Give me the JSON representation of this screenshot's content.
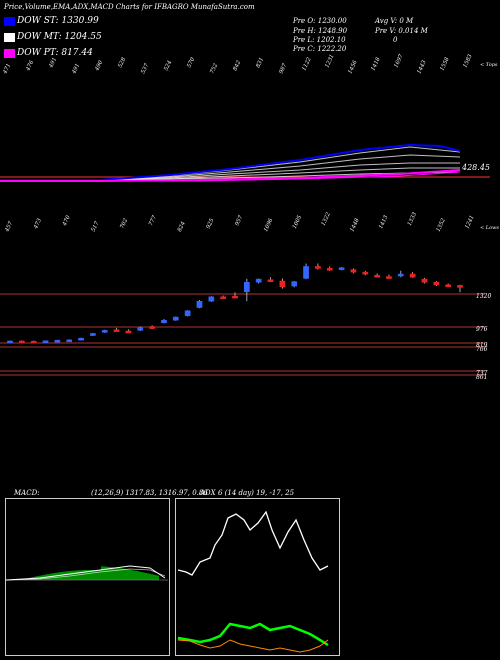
{
  "title": "Price,Volume,EMA,ADX,MACD Charts for IFBAGRO MunafaSutra.com",
  "legend": [
    {
      "label": "DOW ST: 1330.99",
      "color": "#0000ff"
    },
    {
      "label": "DOW MT: 1204.55",
      "color": "#ffffff"
    },
    {
      "label": "DOW PT: 817.44",
      "color": "#ff00ff"
    }
  ],
  "info": {
    "col1": [
      "Pre O: 1230.00",
      "Pre H: 1248.90",
      "Pre L: 1202.10",
      "Pre C: 1222.20"
    ],
    "col2": [
      "Avg V: 0 M",
      "Pre V: 0.014 M",
      "0"
    ]
  },
  "top_panel": {
    "axis_tag": "< Tops",
    "top_labels": [
      "471",
      "476",
      "491",
      "491",
      "490",
      "528",
      "537",
      "524",
      "570",
      "752",
      "842",
      "831",
      "987",
      "1122",
      "1231",
      "1456",
      "1418",
      "1697",
      "1443",
      "1558",
      "1583"
    ],
    "level_label": "428.45"
  },
  "main_panel": {
    "axis_tag": "< Lows",
    "low_labels": [
      "457",
      "473",
      "470",
      "517",
      "702",
      "777",
      "824",
      "925",
      "957",
      "1096",
      "1005",
      "1322",
      "1448",
      "1413",
      "1333",
      "1352",
      "1241"
    ],
    "levels": [
      "1320",
      "976",
      "819",
      "766",
      "737",
      "861"
    ]
  },
  "macd": {
    "label": "MACD:",
    "values": "(12,26,9) 1317.83, 1316.97, 0.86",
    "adx_label": "ADX",
    "adx_values": "6          (14 day) 19, -17, 25"
  },
  "chart_data": {
    "type": "candlestick",
    "title": "Price,Volume,EMA,ADX,MACD Charts for IFBAGRO MunafaSutra.com",
    "candles": [
      {
        "o": 470,
        "h": 480,
        "l": 460,
        "c": 472
      },
      {
        "o": 472,
        "h": 482,
        "l": 465,
        "c": 468
      },
      {
        "o": 468,
        "h": 478,
        "l": 460,
        "c": 465
      },
      {
        "o": 470,
        "h": 480,
        "l": 462,
        "c": 476
      },
      {
        "o": 476,
        "h": 490,
        "l": 470,
        "c": 485
      },
      {
        "o": 485,
        "h": 498,
        "l": 478,
        "c": 490
      },
      {
        "o": 500,
        "h": 525,
        "l": 495,
        "c": 515
      },
      {
        "o": 560,
        "h": 600,
        "l": 550,
        "c": 590
      },
      {
        "o": 610,
        "h": 650,
        "l": 600,
        "c": 640
      },
      {
        "o": 650,
        "h": 680,
        "l": 620,
        "c": 630
      },
      {
        "o": 630,
        "h": 655,
        "l": 615,
        "c": 620
      },
      {
        "o": 640,
        "h": 700,
        "l": 630,
        "c": 680
      },
      {
        "o": 700,
        "h": 720,
        "l": 660,
        "c": 670
      },
      {
        "o": 760,
        "h": 820,
        "l": 750,
        "c": 800
      },
      {
        "o": 800,
        "h": 860,
        "l": 790,
        "c": 850
      },
      {
        "o": 870,
        "h": 960,
        "l": 860,
        "c": 950
      },
      {
        "o": 1000,
        "h": 1120,
        "l": 990,
        "c": 1100
      },
      {
        "o": 1100,
        "h": 1180,
        "l": 1090,
        "c": 1170
      },
      {
        "o": 1170,
        "h": 1190,
        "l": 1150,
        "c": 1165
      },
      {
        "o": 1180,
        "h": 1240,
        "l": 1160,
        "c": 1170
      },
      {
        "o": 1250,
        "h": 1456,
        "l": 1100,
        "c": 1400
      },
      {
        "o": 1400,
        "h": 1460,
        "l": 1380,
        "c": 1450
      },
      {
        "o": 1440,
        "h": 1480,
        "l": 1400,
        "c": 1420
      },
      {
        "o": 1420,
        "h": 1460,
        "l": 1300,
        "c": 1330
      },
      {
        "o": 1340,
        "h": 1420,
        "l": 1320,
        "c": 1410
      },
      {
        "o": 1460,
        "h": 1697,
        "l": 1450,
        "c": 1650
      },
      {
        "o": 1650,
        "h": 1697,
        "l": 1600,
        "c": 1620
      },
      {
        "o": 1620,
        "h": 1650,
        "l": 1580,
        "c": 1600
      },
      {
        "o": 1600,
        "h": 1640,
        "l": 1590,
        "c": 1630
      },
      {
        "o": 1600,
        "h": 1620,
        "l": 1540,
        "c": 1560
      },
      {
        "o": 1560,
        "h": 1580,
        "l": 1510,
        "c": 1530
      },
      {
        "o": 1510,
        "h": 1540,
        "l": 1480,
        "c": 1490
      },
      {
        "o": 1490,
        "h": 1520,
        "l": 1460,
        "c": 1480
      },
      {
        "o": 1500,
        "h": 1583,
        "l": 1480,
        "c": 1530
      },
      {
        "o": 1530,
        "h": 1560,
        "l": 1470,
        "c": 1480
      },
      {
        "o": 1450,
        "h": 1470,
        "l": 1380,
        "c": 1400
      },
      {
        "o": 1400,
        "h": 1420,
        "l": 1340,
        "c": 1360
      },
      {
        "o": 1360,
        "h": 1380,
        "l": 1330,
        "c": 1350
      },
      {
        "o": 1350,
        "h": 1360,
        "l": 1241,
        "c": 1330
      }
    ]
  }
}
